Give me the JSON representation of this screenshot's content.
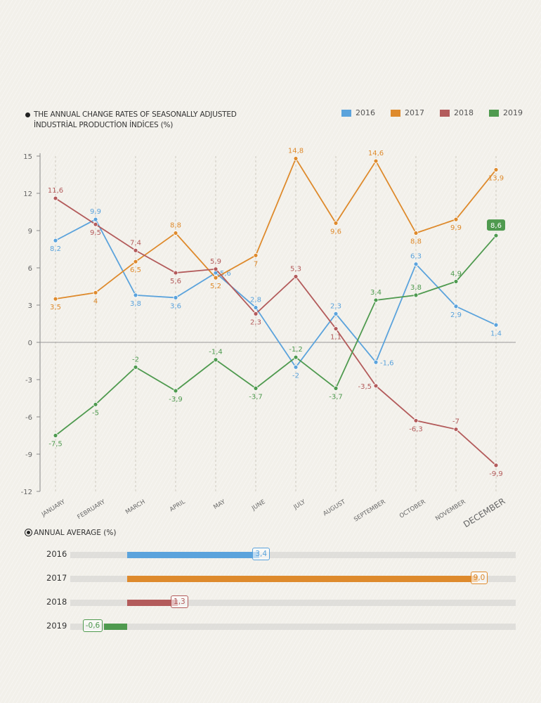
{
  "title_line1": "THE ANNUAL CHANGE RATES OF SEASONALLY ADJUSTED",
  "title_line2": "İNDUSTRİAL PRODUCTİON İNDİCES (%)",
  "average_title": "ANNUAL AVERAGE (%)",
  "chart_data": [
    {
      "type": "line",
      "categories": [
        "JANUARY",
        "FEBRUARY",
        "MARCH",
        "APRIL",
        "MAY",
        "JUNE",
        "JULY",
        "AUGUST",
        "SEPTEMBER",
        "OCTOBER",
        "NOVEMBER",
        "DECEMBER"
      ],
      "ylim": [
        -12,
        15
      ],
      "yticks": [
        15,
        12,
        9,
        6,
        3,
        0,
        -3,
        -6,
        -9,
        -12
      ],
      "grid": "vertical dashed",
      "legend_position": "top-right",
      "series": [
        {
          "name": "2016",
          "color": "#5ba3dc",
          "values": [
            8.2,
            9.9,
            3.8,
            3.6,
            5.6,
            2.8,
            -2,
            2.3,
            -1.6,
            6.3,
            2.9,
            1.4
          ]
        },
        {
          "name": "2017",
          "color": "#de8a2c",
          "values": [
            3.5,
            4,
            6.5,
            8.8,
            5.2,
            7,
            14.8,
            9.6,
            14.6,
            8.8,
            9.9,
            13.9
          ]
        },
        {
          "name": "2018",
          "color": "#b35b5b",
          "values": [
            11.6,
            9.5,
            7.4,
            5.6,
            5.9,
            2.3,
            5.3,
            1.1,
            -3.5,
            -6.3,
            -7,
            -9.9
          ]
        },
        {
          "name": "2019",
          "color": "#4f9a4f",
          "values": [
            -7.5,
            -5,
            -2,
            -3.9,
            -1.4,
            -3.7,
            -1.2,
            -3.7,
            3.4,
            3.8,
            4.9,
            8.6
          ]
        }
      ]
    },
    {
      "type": "bar",
      "orientation": "horizontal",
      "title": "ANNUAL AVERAGE (%)",
      "categories": [
        "2016",
        "2017",
        "2018",
        "2019"
      ],
      "values": [
        3.4,
        9.0,
        1.3,
        -0.6
      ],
      "labels": [
        "3,4",
        "9,0",
        "1,3",
        "-0,6"
      ],
      "colors": [
        "#5ba3dc",
        "#de8a2c",
        "#b35b5b",
        "#4f9a4f"
      ]
    }
  ]
}
